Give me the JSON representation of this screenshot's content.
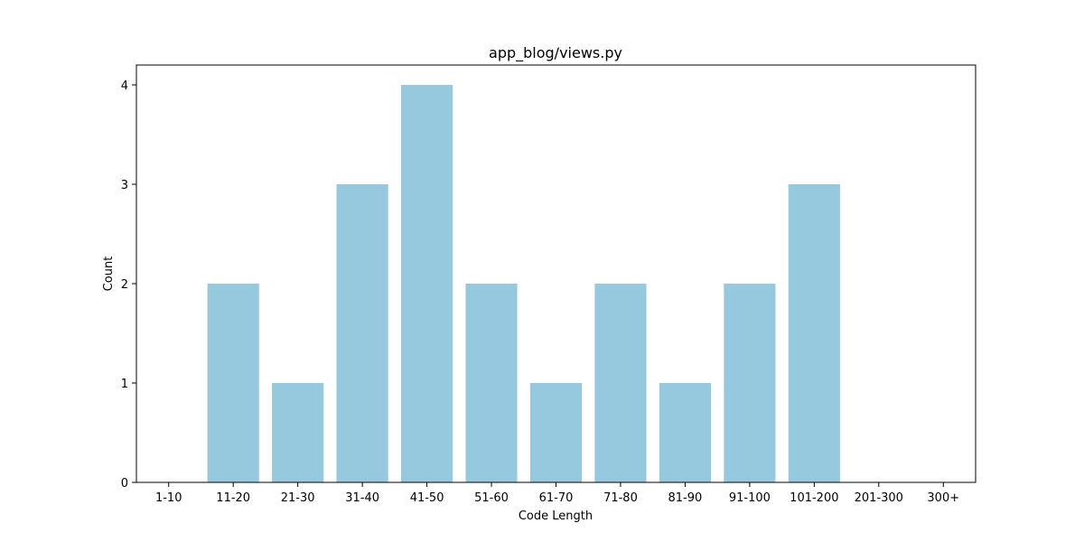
{
  "chart_data": {
    "type": "bar",
    "title": "app_blog/views.py",
    "xlabel": "Code Length",
    "ylabel": "Count",
    "categories": [
      "1-10",
      "11-20",
      "21-30",
      "31-40",
      "41-50",
      "51-60",
      "61-70",
      "71-80",
      "81-90",
      "91-100",
      "101-200",
      "201-300",
      "300+"
    ],
    "values": [
      0,
      2,
      1,
      3,
      4,
      2,
      1,
      2,
      1,
      2,
      3,
      0,
      0
    ],
    "yticks": [
      "0",
      "1",
      "2",
      "3",
      "4"
    ],
    "ylim": [
      0,
      4.2
    ],
    "grid": false,
    "colors": {
      "bar": "#96c9dd",
      "axis": "#000000",
      "background": "#ffffff"
    }
  }
}
